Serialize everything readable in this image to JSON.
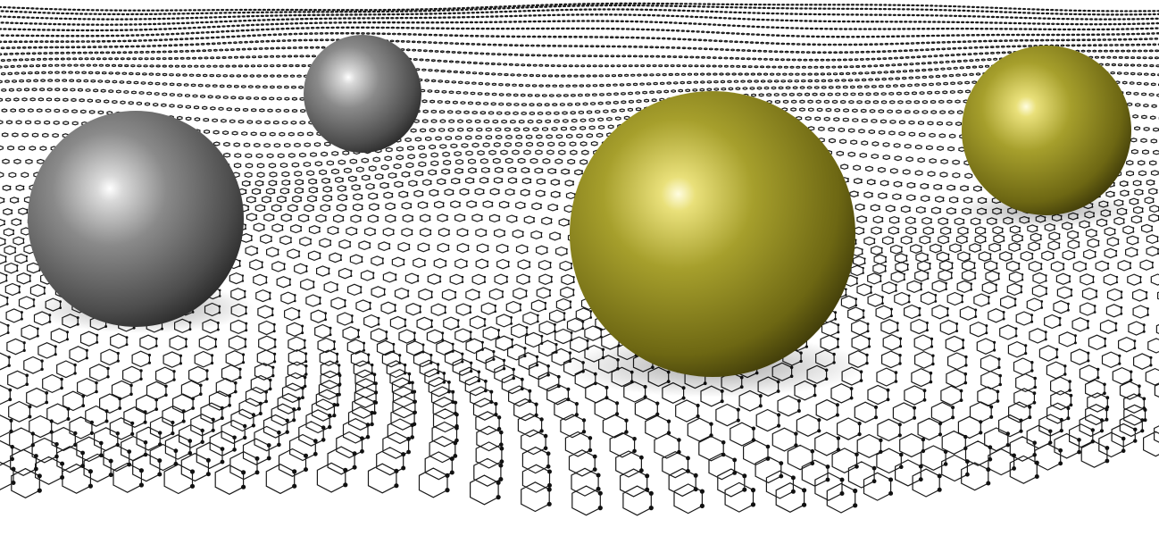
{
  "scene": {
    "background_color": "#ffffff",
    "lattice": {
      "type": "hexagonal",
      "bond_color": "#1a1a1a",
      "atom_color": "#111111",
      "waviness": "rippled"
    },
    "spheres": [
      {
        "id": "gray-sphere-large",
        "material": "gray-metal",
        "base_color": "#6b6b6b"
      },
      {
        "id": "gray-sphere-small",
        "material": "gray-metal",
        "base_color": "#7a7a7a"
      },
      {
        "id": "gold-sphere-large",
        "material": "gold-metal",
        "base_color": "#8f8a1c"
      },
      {
        "id": "gold-sphere-small",
        "material": "gold-metal",
        "base_color": "#948f25"
      }
    ]
  }
}
